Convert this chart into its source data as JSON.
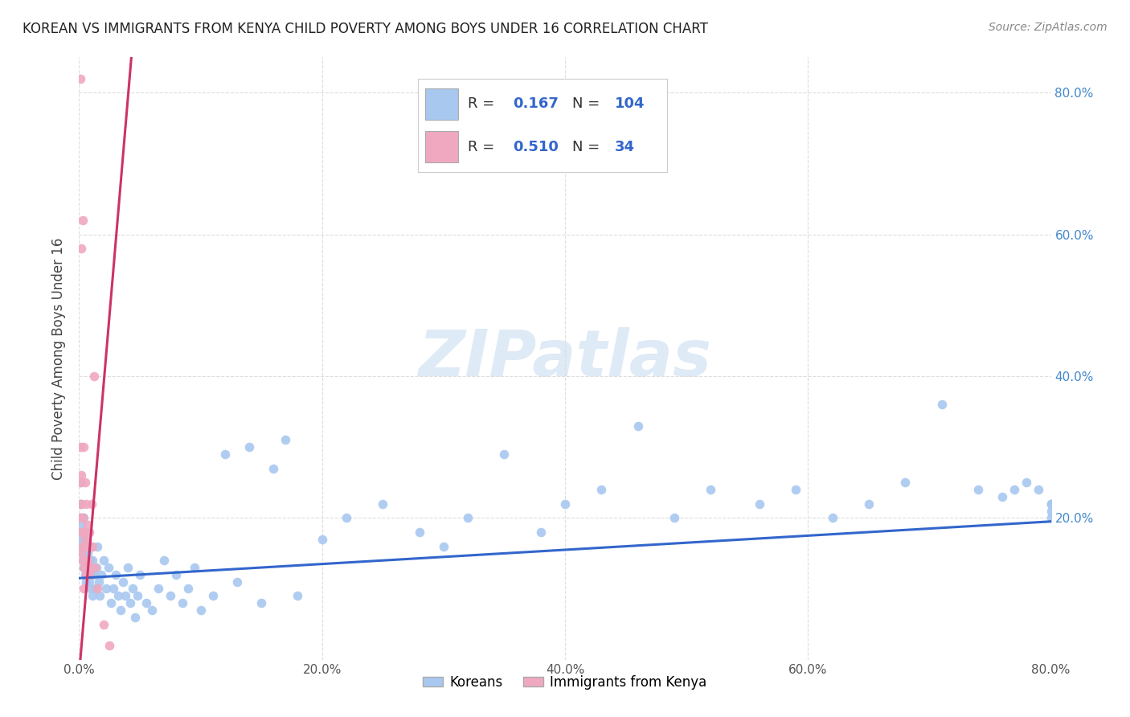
{
  "title": "KOREAN VS IMMIGRANTS FROM KENYA CHILD POVERTY AMONG BOYS UNDER 16 CORRELATION CHART",
  "source": "Source: ZipAtlas.com",
  "ylabel": "Child Poverty Among Boys Under 16",
  "watermark": "ZIPatlas",
  "xlim": [
    0.0,
    0.8
  ],
  "ylim": [
    0.0,
    0.85
  ],
  "xticks": [
    0.0,
    0.2,
    0.4,
    0.6,
    0.8
  ],
  "yticks": [
    0.2,
    0.4,
    0.6,
    0.8
  ],
  "korean_R": 0.167,
  "korean_N": 104,
  "kenya_R": 0.51,
  "kenya_N": 34,
  "korean_color": "#a8c8f0",
  "kenya_color": "#f0a8c0",
  "korean_line_color": "#3366cc",
  "kenya_line_color": "#cc3366",
  "legend_label_korean": "Koreans",
  "legend_label_kenya": "Immigrants from Kenya",
  "korean_line_x0": 0.0,
  "korean_line_y0": 0.115,
  "korean_line_x1": 0.8,
  "korean_line_y1": 0.195,
  "kenya_line_x0": 0.001,
  "kenya_line_y0": 0.0,
  "kenya_line_x1": 0.043,
  "kenya_line_y1": 0.85,
  "korean_x": [
    0.001,
    0.001,
    0.001,
    0.002,
    0.002,
    0.002,
    0.002,
    0.003,
    0.003,
    0.003,
    0.003,
    0.003,
    0.004,
    0.004,
    0.004,
    0.004,
    0.005,
    0.005,
    0.005,
    0.005,
    0.006,
    0.006,
    0.006,
    0.007,
    0.007,
    0.007,
    0.008,
    0.008,
    0.009,
    0.009,
    0.01,
    0.01,
    0.011,
    0.011,
    0.012,
    0.013,
    0.014,
    0.015,
    0.016,
    0.017,
    0.018,
    0.02,
    0.022,
    0.024,
    0.026,
    0.028,
    0.03,
    0.032,
    0.034,
    0.036,
    0.038,
    0.04,
    0.042,
    0.044,
    0.046,
    0.048,
    0.05,
    0.055,
    0.06,
    0.065,
    0.07,
    0.075,
    0.08,
    0.085,
    0.09,
    0.095,
    0.1,
    0.11,
    0.12,
    0.13,
    0.14,
    0.15,
    0.16,
    0.17,
    0.18,
    0.2,
    0.22,
    0.25,
    0.28,
    0.3,
    0.32,
    0.35,
    0.38,
    0.4,
    0.43,
    0.46,
    0.49,
    0.52,
    0.56,
    0.59,
    0.62,
    0.65,
    0.68,
    0.71,
    0.74,
    0.76,
    0.77,
    0.78,
    0.79,
    0.8,
    0.8,
    0.8,
    0.8,
    0.8
  ],
  "korean_y": [
    0.2,
    0.18,
    0.22,
    0.17,
    0.19,
    0.22,
    0.25,
    0.15,
    0.18,
    0.2,
    0.14,
    0.16,
    0.13,
    0.17,
    0.2,
    0.15,
    0.16,
    0.12,
    0.18,
    0.14,
    0.11,
    0.13,
    0.17,
    0.15,
    0.12,
    0.16,
    0.13,
    0.11,
    0.14,
    0.1,
    0.12,
    0.16,
    0.09,
    0.14,
    0.12,
    0.1,
    0.13,
    0.16,
    0.11,
    0.09,
    0.12,
    0.14,
    0.1,
    0.13,
    0.08,
    0.1,
    0.12,
    0.09,
    0.07,
    0.11,
    0.09,
    0.13,
    0.08,
    0.1,
    0.06,
    0.09,
    0.12,
    0.08,
    0.07,
    0.1,
    0.14,
    0.09,
    0.12,
    0.08,
    0.1,
    0.13,
    0.07,
    0.09,
    0.29,
    0.11,
    0.3,
    0.08,
    0.27,
    0.31,
    0.09,
    0.17,
    0.2,
    0.22,
    0.18,
    0.16,
    0.2,
    0.29,
    0.18,
    0.22,
    0.24,
    0.33,
    0.2,
    0.24,
    0.22,
    0.24,
    0.2,
    0.22,
    0.25,
    0.36,
    0.24,
    0.23,
    0.24,
    0.25,
    0.24,
    0.22,
    0.2,
    0.22,
    0.21,
    0.22
  ],
  "kenya_x": [
    0.001,
    0.001,
    0.001,
    0.001,
    0.002,
    0.002,
    0.002,
    0.002,
    0.002,
    0.003,
    0.003,
    0.003,
    0.003,
    0.004,
    0.004,
    0.004,
    0.004,
    0.005,
    0.005,
    0.006,
    0.006,
    0.006,
    0.007,
    0.007,
    0.008,
    0.008,
    0.009,
    0.01,
    0.011,
    0.012,
    0.013,
    0.015,
    0.02,
    0.025
  ],
  "kenya_y": [
    0.82,
    0.2,
    0.3,
    0.25,
    0.58,
    0.26,
    0.22,
    0.18,
    0.15,
    0.62,
    0.2,
    0.16,
    0.14,
    0.3,
    0.18,
    0.13,
    0.1,
    0.25,
    0.17,
    0.22,
    0.16,
    0.12,
    0.19,
    0.14,
    0.18,
    0.12,
    0.13,
    0.22,
    0.16,
    0.4,
    0.13,
    0.1,
    0.05,
    0.02
  ]
}
